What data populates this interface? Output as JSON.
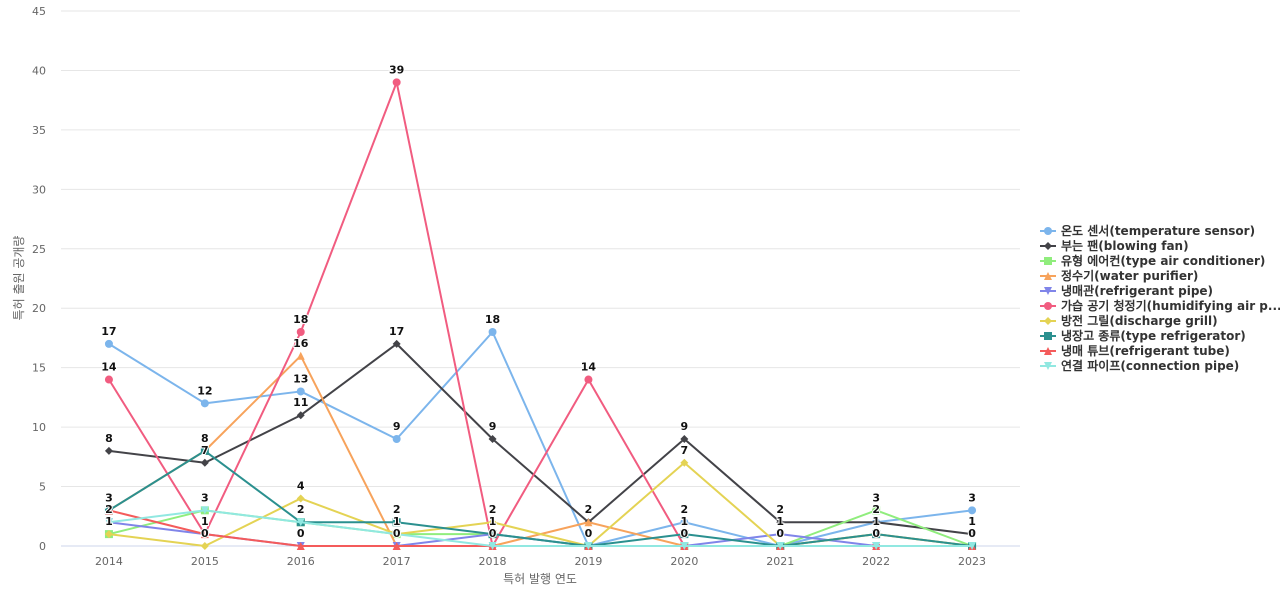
{
  "chart_data": {
    "type": "line",
    "title": "",
    "xlabel": "특허 발행 연도",
    "ylabel": "특허 출원 공개량",
    "ylim": [
      0,
      45
    ],
    "yticks": [
      0,
      5,
      10,
      15,
      20,
      25,
      30,
      35,
      40,
      45
    ],
    "grid": true,
    "legend_position": "right",
    "x": [
      "2014",
      "2015",
      "2016",
      "2017",
      "2018",
      "2019",
      "2020",
      "2021",
      "2022",
      "2023"
    ],
    "series": [
      {
        "name": "온도 센서(temperature sensor)",
        "legend_label": "온도 센서(temperature sensor)",
        "color": "#7cb5ec",
        "marker": "circle",
        "values": [
          17,
          12,
          13,
          9,
          18,
          0,
          2,
          0,
          2,
          3
        ]
      },
      {
        "name": "부는 팬(blowing fan)",
        "legend_label": "부는 팬(blowing fan)",
        "color": "#434348",
        "marker": "diamond",
        "values": [
          8,
          7,
          11,
          17,
          9,
          2,
          9,
          2,
          2,
          1
        ]
      },
      {
        "name": "유형 에어컨(type air conditioner)",
        "legend_label": "유형 에어컨(type air conditioner)",
        "color": "#90ed7d",
        "marker": "square",
        "values": [
          1,
          3,
          2,
          1,
          1,
          0,
          0,
          0,
          3,
          0
        ]
      },
      {
        "name": "정수기(water purifier)",
        "legend_label": "정수기(water purifier)",
        "color": "#f7a35c",
        "marker": "triangle",
        "values": [
          3,
          8,
          16,
          0,
          0,
          2,
          0,
          0,
          1,
          0
        ]
      },
      {
        "name": "냉매관(refrigerant pipe)",
        "legend_label": "냉매관(refrigerant pipe)",
        "color": "#8085e9",
        "marker": "triangle-down",
        "values": [
          2,
          1,
          0,
          0,
          1,
          0,
          0,
          1,
          0,
          0
        ]
      },
      {
        "name": "가습 공기 청정기(humidifying air purifier)",
        "legend_label": "가습 공기 청정기(humidifying air p...",
        "color": "#f15c80",
        "marker": "circle",
        "values": [
          14,
          1,
          18,
          39,
          0,
          14,
          0,
          0,
          0,
          0
        ]
      },
      {
        "name": "방전 그릴(discharge grill)",
        "legend_label": "방전 그릴(discharge grill)",
        "color": "#e4d354",
        "marker": "diamond",
        "values": [
          1,
          0,
          4,
          1,
          2,
          0,
          7,
          0,
          1,
          0
        ]
      },
      {
        "name": "냉장고 종류(type refrigerator)",
        "legend_label": "냉장고 종류(type refrigerator)",
        "color": "#2b908f",
        "marker": "square",
        "values": [
          3,
          8,
          2,
          2,
          1,
          0,
          1,
          0,
          1,
          0
        ]
      },
      {
        "name": "냉매 튜브(refrigerant tube)",
        "legend_label": "냉매 튜브(refrigerant tube)",
        "color": "#f45b5b",
        "marker": "triangle",
        "values": [
          3,
          1,
          0,
          0,
          0,
          0,
          0,
          0,
          0,
          0
        ]
      },
      {
        "name": "연결 파이프(connection pipe)",
        "legend_label": "연결 파이프(connection pipe)",
        "color": "#91e8e1",
        "marker": "triangle-down",
        "values": [
          2,
          3,
          2,
          1,
          0,
          0,
          0,
          0,
          0,
          0
        ]
      }
    ],
    "data_labels": [
      {
        "x": "2014",
        "text": "17"
      },
      {
        "x": "2014",
        "text": "14"
      },
      {
        "x": "2014",
        "text": "8"
      },
      {
        "x": "2014",
        "text": "3"
      },
      {
        "x": "2014",
        "text": "2"
      },
      {
        "x": "2014",
        "text": "1"
      },
      {
        "x": "2015",
        "text": "12"
      },
      {
        "x": "2015",
        "text": "8"
      },
      {
        "x": "2015",
        "text": "7"
      },
      {
        "x": "2015",
        "text": "3"
      },
      {
        "x": "2015",
        "text": "1"
      },
      {
        "x": "2015",
        "text": "0"
      },
      {
        "x": "2016",
        "text": "18"
      },
      {
        "x": "2016",
        "text": "16"
      },
      {
        "x": "2016",
        "text": "13"
      },
      {
        "x": "2016",
        "text": "11"
      },
      {
        "x": "2016",
        "text": "4"
      },
      {
        "x": "2016",
        "text": "2"
      },
      {
        "x": "2016",
        "text": "0"
      },
      {
        "x": "2017",
        "text": "39"
      },
      {
        "x": "2017",
        "text": "17"
      },
      {
        "x": "2017",
        "text": "9"
      },
      {
        "x": "2017",
        "text": "2"
      },
      {
        "x": "2017",
        "text": "1"
      },
      {
        "x": "2017",
        "text": "0"
      },
      {
        "x": "2018",
        "text": "18"
      },
      {
        "x": "2018",
        "text": "9"
      },
      {
        "x": "2018",
        "text": "2"
      },
      {
        "x": "2018",
        "text": "1"
      },
      {
        "x": "2018",
        "text": "0"
      },
      {
        "x": "2019",
        "text": "14"
      },
      {
        "x": "2019",
        "text": "2"
      },
      {
        "x": "2019",
        "text": "0"
      },
      {
        "x": "2020",
        "text": "9"
      },
      {
        "x": "2020",
        "text": "7"
      },
      {
        "x": "2020",
        "text": "2"
      },
      {
        "x": "2020",
        "text": "1"
      },
      {
        "x": "2020",
        "text": "0"
      },
      {
        "x": "2021",
        "text": "2"
      },
      {
        "x": "2021",
        "text": "1"
      },
      {
        "x": "2021",
        "text": "0"
      },
      {
        "x": "2022",
        "text": "3"
      },
      {
        "x": "2022",
        "text": "2"
      },
      {
        "x": "2022",
        "text": "1"
      },
      {
        "x": "2022",
        "text": "0"
      },
      {
        "x": "2023",
        "text": "3"
      },
      {
        "x": "2023",
        "text": "1"
      },
      {
        "x": "2023",
        "text": "0"
      }
    ]
  }
}
